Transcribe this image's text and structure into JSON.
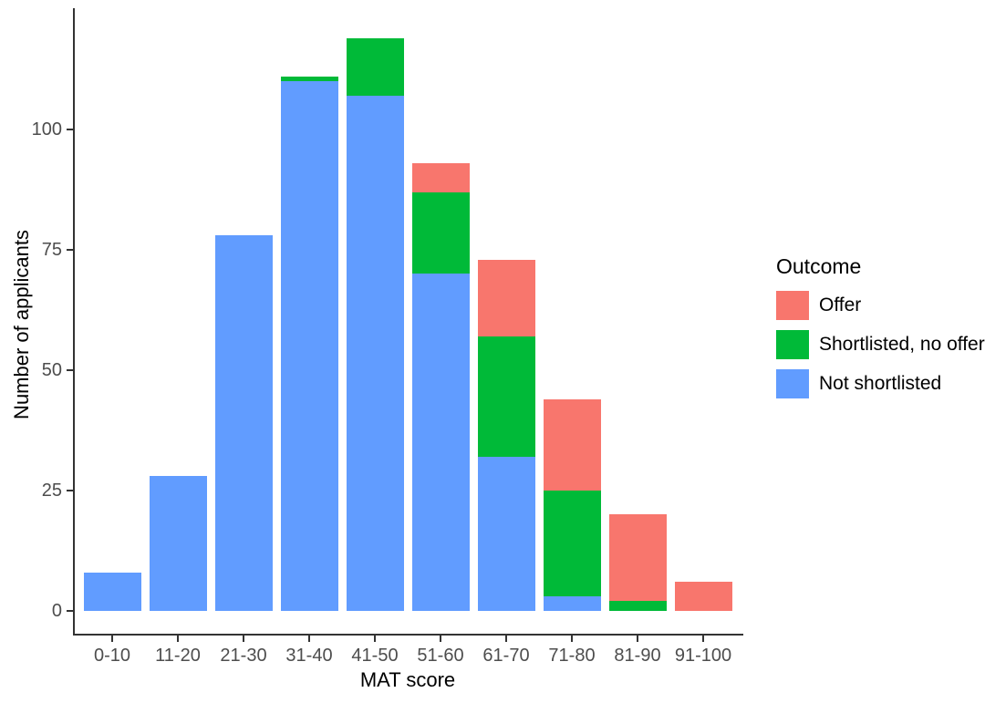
{
  "chart_data": {
    "type": "bar",
    "stacked": true,
    "title": "",
    "xlabel": "MAT score",
    "ylabel": "Number of applicants",
    "categories": [
      "0-10",
      "11-20",
      "21-30",
      "31-40",
      "41-50",
      "51-60",
      "61-70",
      "71-80",
      "81-90",
      "91-100"
    ],
    "series": [
      {
        "name": "Offer",
        "color": "#F8766D",
        "values": [
          0,
          0,
          0,
          0,
          0,
          6,
          16,
          19,
          18,
          6
        ]
      },
      {
        "name": "Shortlisted, no offer",
        "color": "#00BA38",
        "values": [
          0,
          0,
          0,
          1,
          12,
          17,
          25,
          22,
          2,
          0
        ]
      },
      {
        "name": "Not shortlisted",
        "color": "#619CFF",
        "values": [
          8,
          28,
          78,
          110,
          107,
          70,
          32,
          3,
          0,
          0
        ]
      }
    ],
    "totals": [
      8,
      28,
      78,
      111,
      119,
      93,
      73,
      44,
      20,
      6
    ],
    "y_ticks": [
      0,
      25,
      50,
      75,
      100
    ],
    "ylim": [
      0,
      125
    ],
    "grid": false,
    "legend_title": "Outcome",
    "legend_position": "right",
    "axis_color": "#333333",
    "tick_label_color": "#4d4d4d",
    "background_color": "#ffffff"
  }
}
